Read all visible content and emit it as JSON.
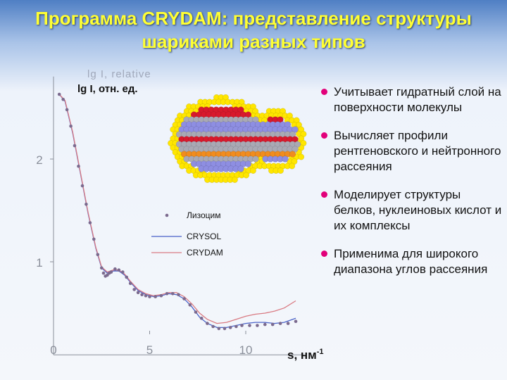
{
  "title": {
    "line1": "Программа CRYDAM: представление структуры",
    "line2": "шариками разных типов"
  },
  "chart_data": {
    "type": "scatter",
    "title": "",
    "xlabel": "s, нм-1",
    "xlabel_main": "s, нм",
    "xlabel_sup": "-1",
    "ylabel": "lg I, отн. ед.",
    "ylabel_faded": "lg I, relative",
    "xlim": [
      0,
      13
    ],
    "ylim": [
      0.3,
      2.7
    ],
    "xticks": [
      {
        "value": 0,
        "label": "0"
      },
      {
        "value": 5,
        "label": "5"
      },
      {
        "value": 10,
        "label": "10"
      }
    ],
    "yticks": [
      {
        "value": 1,
        "label": "1"
      },
      {
        "value": 2,
        "label": "2"
      }
    ],
    "legend_position": "center",
    "series": [
      {
        "name": "Лизоцим",
        "style": "dots",
        "color": "#7b6a8e",
        "x": [
          0.3,
          0.5,
          0.7,
          0.9,
          1.1,
          1.3,
          1.5,
          1.7,
          1.9,
          2.1,
          2.3,
          2.5,
          2.6,
          2.7,
          2.8,
          2.9,
          3.0,
          3.2,
          3.4,
          3.6,
          3.8,
          4.0,
          4.2,
          4.4,
          4.6,
          4.8,
          5.0,
          5.3,
          5.6,
          5.9,
          6.2,
          6.5,
          6.8,
          7.1,
          7.4,
          7.7,
          8.0,
          8.3,
          8.6,
          8.9,
          9.2,
          9.5,
          9.8,
          10.2,
          10.6,
          11.0,
          11.4,
          11.8,
          12.2,
          12.6
        ],
        "y": [
          2.63,
          2.58,
          2.48,
          2.32,
          2.13,
          1.93,
          1.74,
          1.56,
          1.38,
          1.22,
          1.07,
          0.94,
          0.89,
          0.86,
          0.87,
          0.89,
          0.9,
          0.93,
          0.92,
          0.9,
          0.85,
          0.79,
          0.73,
          0.7,
          0.68,
          0.67,
          0.66,
          0.66,
          0.67,
          0.69,
          0.69,
          0.68,
          0.64,
          0.58,
          0.51,
          0.45,
          0.4,
          0.37,
          0.35,
          0.35,
          0.36,
          0.37,
          0.38,
          0.38,
          0.38,
          0.39,
          0.39,
          0.4,
          0.4,
          0.42
        ]
      },
      {
        "name": "CRYSOL",
        "style": "line",
        "color": "#4a62c8",
        "x": [
          0.3,
          0.6,
          1.0,
          1.4,
          1.8,
          2.2,
          2.5,
          2.8,
          3.1,
          3.4,
          3.7,
          4.0,
          4.4,
          4.8,
          5.2,
          5.6,
          6.0,
          6.4,
          6.8,
          7.2,
          7.6,
          8.0,
          8.5,
          9.0,
          9.5,
          10.0,
          10.5,
          11.0,
          11.5,
          12.0,
          12.6
        ],
        "y": [
          2.63,
          2.56,
          2.25,
          1.86,
          1.47,
          1.13,
          0.94,
          0.89,
          0.91,
          0.91,
          0.87,
          0.8,
          0.72,
          0.68,
          0.66,
          0.67,
          0.69,
          0.68,
          0.64,
          0.56,
          0.46,
          0.4,
          0.36,
          0.36,
          0.38,
          0.4,
          0.41,
          0.41,
          0.4,
          0.41,
          0.45
        ]
      },
      {
        "name": "CRYDAM",
        "style": "line",
        "color": "#d97a82",
        "x": [
          0.3,
          0.6,
          1.0,
          1.4,
          1.8,
          2.2,
          2.5,
          2.8,
          3.1,
          3.4,
          3.7,
          4.0,
          4.4,
          4.8,
          5.2,
          5.6,
          6.0,
          6.4,
          6.8,
          7.2,
          7.6,
          8.0,
          8.5,
          9.0,
          9.5,
          10.0,
          10.5,
          11.0,
          11.5,
          12.0,
          12.6
        ],
        "y": [
          2.63,
          2.57,
          2.26,
          1.87,
          1.48,
          1.14,
          0.95,
          0.9,
          0.92,
          0.92,
          0.88,
          0.81,
          0.73,
          0.69,
          0.67,
          0.68,
          0.7,
          0.7,
          0.66,
          0.59,
          0.5,
          0.44,
          0.4,
          0.41,
          0.44,
          0.47,
          0.49,
          0.5,
          0.52,
          0.55,
          0.62
        ]
      }
    ]
  },
  "bullets": [
    "Учитывает гидратный слой на поверхности молекулы",
    "Вычисляет профили рентгеновского и нейтронного рассеяния",
    "Моделирует структуры белков, нуклеиновых кислот и их комплексы",
    "Применима для широкого диапазона углов рассеяния"
  ],
  "colors": {
    "title": "#ffff33",
    "bullet_dot": "#e2007a",
    "hydration_shell": "#ffe600",
    "atom_red": "#d8192c",
    "atom_blue": "#8e8ee2",
    "atom_grey": "#a9a9b4",
    "atom_orange": "#f08c1e"
  }
}
